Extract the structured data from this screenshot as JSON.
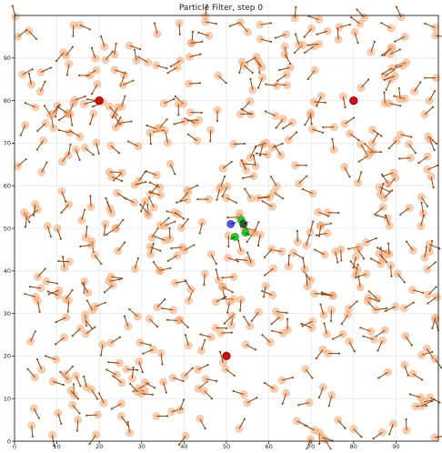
{
  "chart_data": {
    "type": "scatter",
    "title": "Particle Filter, step 0",
    "xlim": [
      0,
      100
    ],
    "ylim": [
      0,
      100
    ],
    "xticks": [
      0,
      10,
      20,
      30,
      40,
      50,
      60,
      70,
      80,
      90
    ],
    "yticks": [
      0,
      10,
      20,
      30,
      40,
      50,
      60,
      70,
      80,
      90
    ],
    "grid": true,
    "colors": {
      "particle": "#f4a46b",
      "particle_edge": "#d9803f",
      "heading": "#8b4513",
      "landmark": "#cc1111",
      "robot_true": "#5555ee",
      "estimate": "#22cc22",
      "mean": "#2f5d3a"
    },
    "landmarks": [
      {
        "x": 20,
        "y": 80
      },
      {
        "x": 80,
        "y": 80
      },
      {
        "x": 50,
        "y": 20
      }
    ],
    "robot": {
      "x": 51,
      "y": 51
    },
    "mean_estimate": {
      "x": 54,
      "y": 51
    },
    "estimates": [
      {
        "x": 52,
        "y": 48
      },
      {
        "x": 54.5,
        "y": 49
      },
      {
        "x": 53.5,
        "y": 52
      }
    ],
    "particle_count": 500,
    "particle_seed": 42
  }
}
